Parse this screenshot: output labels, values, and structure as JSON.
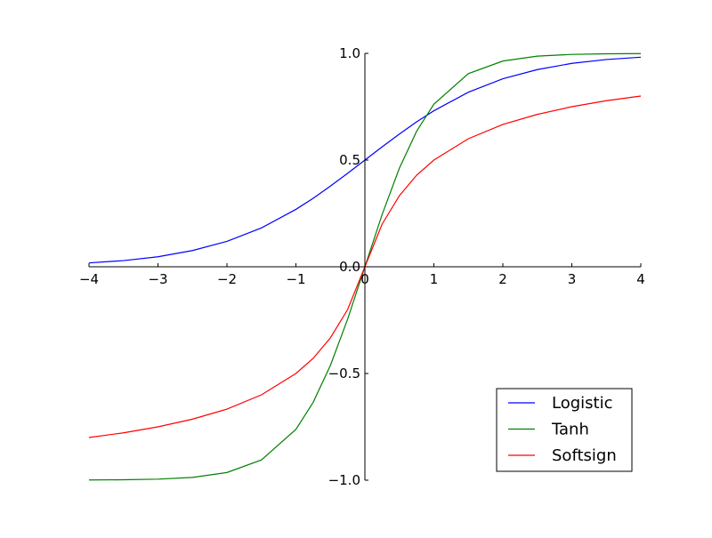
{
  "chart_data": {
    "type": "line",
    "xlim": [
      -4,
      4
    ],
    "ylim": [
      -1,
      1
    ],
    "grid": false,
    "legend_position": "bottom-right",
    "x_ticks": [
      -4,
      -3,
      -2,
      -1,
      0,
      1,
      2,
      3,
      4
    ],
    "x_tick_labels": [
      "−4",
      "−3",
      "−2",
      "−1",
      "0",
      "1",
      "2",
      "3",
      "4"
    ],
    "y_ticks": [
      -1,
      -0.5,
      0,
      0.5,
      1
    ],
    "y_tick_labels": [
      "−1.0",
      "−0.5",
      "0.0",
      "0.5",
      "1.0"
    ],
    "x": [
      -4,
      -3.5,
      -3,
      -2.5,
      -2,
      -1.5,
      -1,
      -0.75,
      -0.5,
      -0.25,
      0,
      0.25,
      0.5,
      0.75,
      1,
      1.5,
      2,
      2.5,
      3,
      3.5,
      4
    ],
    "series": [
      {
        "name": "Logistic",
        "color": "#0000ff",
        "values": [
          0.018,
          0.029,
          0.047,
          0.076,
          0.119,
          0.182,
          0.269,
          0.321,
          0.378,
          0.438,
          0.5,
          0.562,
          0.622,
          0.679,
          0.731,
          0.818,
          0.881,
          0.924,
          0.953,
          0.971,
          0.982
        ]
      },
      {
        "name": "Tanh",
        "color": "#008000",
        "values": [
          -0.999,
          -0.998,
          -0.995,
          -0.987,
          -0.964,
          -0.905,
          -0.762,
          -0.635,
          -0.462,
          -0.245,
          0.0,
          0.245,
          0.462,
          0.635,
          0.762,
          0.905,
          0.964,
          0.987,
          0.995,
          0.998,
          0.999
        ]
      },
      {
        "name": "Softsign",
        "color": "#ff0000",
        "values": [
          -0.8,
          -0.778,
          -0.75,
          -0.714,
          -0.667,
          -0.6,
          -0.5,
          -0.429,
          -0.333,
          -0.2,
          0.0,
          0.2,
          0.333,
          0.429,
          0.5,
          0.6,
          0.667,
          0.714,
          0.75,
          0.778,
          0.8
        ]
      }
    ]
  }
}
